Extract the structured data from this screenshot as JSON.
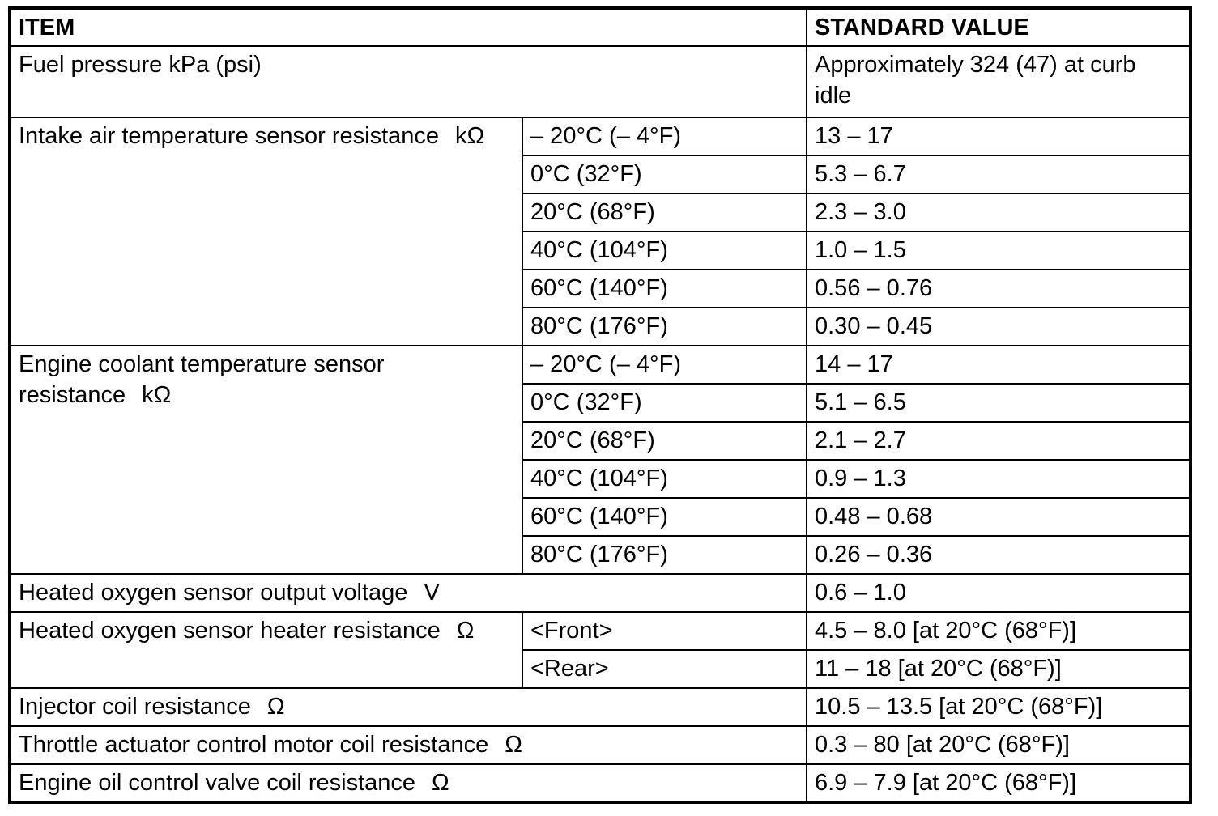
{
  "table": {
    "headers": {
      "item": "ITEM",
      "standard_value": "STANDARD VALUE"
    },
    "rows": [
      {
        "item": "Fuel pressure kPa (psi)",
        "value": "Approximately 324 (47) at curb idle"
      },
      {
        "item": "Intake air temperature sensor resistance",
        "unit": "kΩ",
        "conditions": [
          {
            "condition": "– 20°C (– 4°F)",
            "value": "13 – 17"
          },
          {
            "condition": "0°C (32°F)",
            "value": "5.3 – 6.7"
          },
          {
            "condition": "20°C (68°F)",
            "value": "2.3 – 3.0"
          },
          {
            "condition": "40°C (104°F)",
            "value": "1.0 – 1.5"
          },
          {
            "condition": "60°C (140°F)",
            "value": "0.56 – 0.76"
          },
          {
            "condition": "80°C (176°F)",
            "value": "0.30 – 0.45"
          }
        ]
      },
      {
        "item": "Engine coolant temperature sensor resistance",
        "unit": "kΩ",
        "conditions": [
          {
            "condition": "– 20°C (– 4°F)",
            "value": "14 – 17"
          },
          {
            "condition": "0°C (32°F)",
            "value": "5.1 – 6.5"
          },
          {
            "condition": "20°C (68°F)",
            "value": "2.1 – 2.7"
          },
          {
            "condition": "40°C (104°F)",
            "value": "0.9 – 1.3"
          },
          {
            "condition": "60°C (140°F)",
            "value": "0.48 – 0.68"
          },
          {
            "condition": "80°C (176°F)",
            "value": "0.26 – 0.36"
          }
        ]
      },
      {
        "item": "Heated oxygen sensor output voltage",
        "unit": "V",
        "value": "0.6 – 1.0"
      },
      {
        "item": "Heated oxygen sensor heater resistance",
        "unit": "Ω",
        "conditions": [
          {
            "condition": "<Front>",
            "value": "4.5 – 8.0 [at 20°C (68°F)]"
          },
          {
            "condition": "<Rear>",
            "value": "11 – 18 [at 20°C (68°F)]"
          }
        ]
      },
      {
        "item": "Injector coil resistance",
        "unit": "Ω",
        "value": "10.5 – 13.5 [at 20°C (68°F)]"
      },
      {
        "item": "Throttle actuator control motor coil resistance",
        "unit": "Ω",
        "value": "0.3 – 80 [at 20°C (68°F)]"
      },
      {
        "item": "Engine oil control valve coil resistance",
        "unit": "Ω",
        "value": "6.9 – 7.9 [at 20°C (68°F)]"
      }
    ]
  }
}
